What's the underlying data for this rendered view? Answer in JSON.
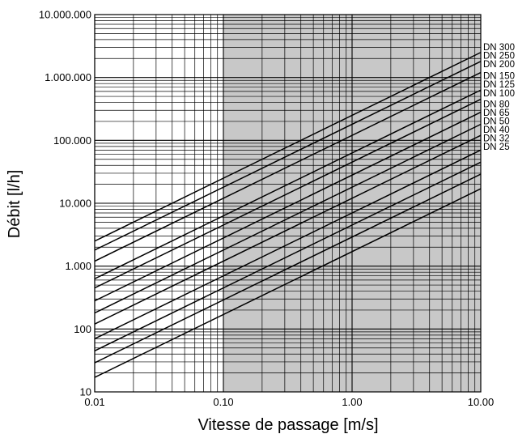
{
  "chart_data": {
    "type": "line",
    "xlabel": "Vitesse de passage [m/s]",
    "ylabel": "Débit [l/h]",
    "x_scale": "log",
    "y_scale": "log",
    "xlim": [
      0.01,
      10
    ],
    "ylim": [
      10,
      10000000
    ],
    "grid": true,
    "shaded_region_x": [
      0.1,
      10
    ],
    "x_ticks": [
      {
        "value": 0.01,
        "label": "0.01"
      },
      {
        "value": 0.1,
        "label": "0.10"
      },
      {
        "value": 1,
        "label": "1.00"
      },
      {
        "value": 10,
        "label": "10.00"
      }
    ],
    "y_ticks": [
      {
        "value": 10,
        "label": "10"
      },
      {
        "value": 100,
        "label": "100"
      },
      {
        "value": 1000,
        "label": "1.000"
      },
      {
        "value": 10000,
        "label": "10.000"
      },
      {
        "value": 100000,
        "label": "100.000"
      },
      {
        "value": 1000000,
        "label": "1.000.000"
      },
      {
        "value": 10000000,
        "label": "10.000.000"
      }
    ],
    "line_color": "#000000",
    "shade_color": "#c8c8c8",
    "grid_color": "#000000",
    "series": [
      {
        "name": "DN 300",
        "x": [
          0.01,
          10
        ],
        "y": [
          2500,
          2500000
        ]
      },
      {
        "name": "DN 250",
        "x": [
          0.01,
          10
        ],
        "y": [
          1800,
          1800000
        ]
      },
      {
        "name": "DN 200",
        "x": [
          0.01,
          10
        ],
        "y": [
          1200,
          1200000
        ]
      },
      {
        "name": "DN 150",
        "x": [
          0.01,
          10
        ],
        "y": [
          630,
          630000
        ]
      },
      {
        "name": "DN 125",
        "x": [
          0.01,
          10
        ],
        "y": [
          450,
          450000
        ]
      },
      {
        "name": "DN 100",
        "x": [
          0.01,
          10
        ],
        "y": [
          280,
          280000
        ]
      },
      {
        "name": "DN 80",
        "x": [
          0.01,
          10
        ],
        "y": [
          180,
          180000
        ]
      },
      {
        "name": "DN 65",
        "x": [
          0.01,
          10
        ],
        "y": [
          120,
          120000
        ]
      },
      {
        "name": "DN 50",
        "x": [
          0.01,
          10
        ],
        "y": [
          70,
          70000
        ]
      },
      {
        "name": "DN 40",
        "x": [
          0.01,
          10
        ],
        "y": [
          45,
          45000
        ]
      },
      {
        "name": "DN 32",
        "x": [
          0.01,
          10
        ],
        "y": [
          29,
          29000
        ]
      },
      {
        "name": "DN 25",
        "x": [
          0.01,
          10
        ],
        "y": [
          17,
          17000
        ]
      }
    ],
    "label_anchor_y": [
      2500000,
      1800000,
      1200000,
      630000,
      450000,
      280000,
      180000,
      120000,
      70000,
      45000,
      29000,
      17000
    ]
  }
}
